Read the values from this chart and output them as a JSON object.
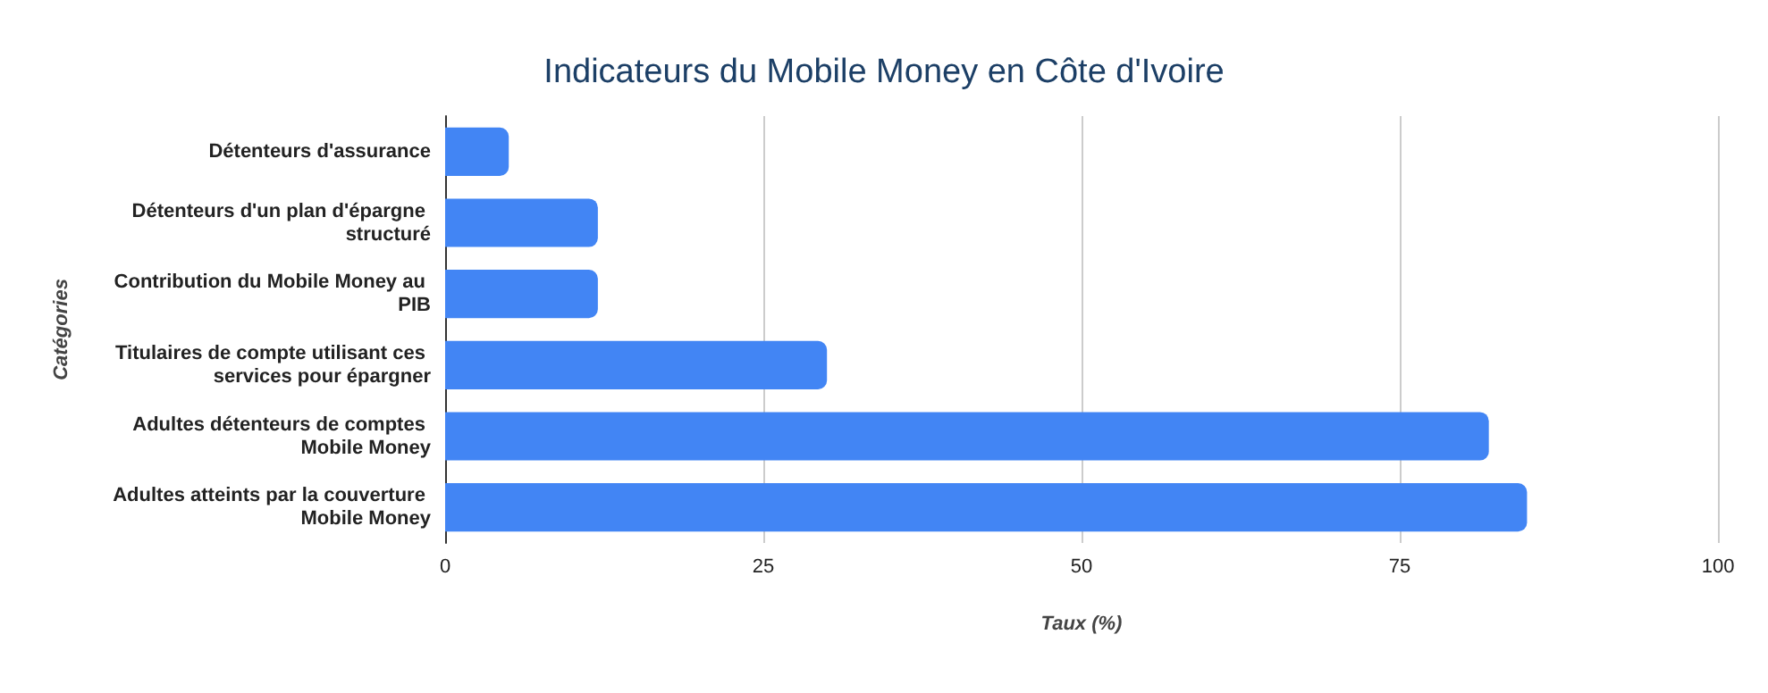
{
  "chart_data": {
    "type": "bar",
    "orientation": "horizontal",
    "title": "Indicateurs du Mobile Money en Côte d'Ivoire",
    "xlabel": "Taux (%)",
    "ylabel": "Catégories",
    "categories": [
      "Détenteurs d'assurance",
      "Détenteurs d'un plan d'épargne structuré",
      "Contribution du Mobile Money au PIB",
      "Titulaires de compte utilisant ces services pour épargner",
      "Adultes détenteurs de comptes Mobile Money",
      "Adultes atteints par la couverture Mobile Money"
    ],
    "values": [
      5,
      12,
      12,
      30,
      82,
      85
    ],
    "color": "#4285f4",
    "xlim": [
      0,
      100
    ],
    "xticks": [
      0,
      25,
      50,
      75,
      100
    ],
    "grid": "x"
  }
}
